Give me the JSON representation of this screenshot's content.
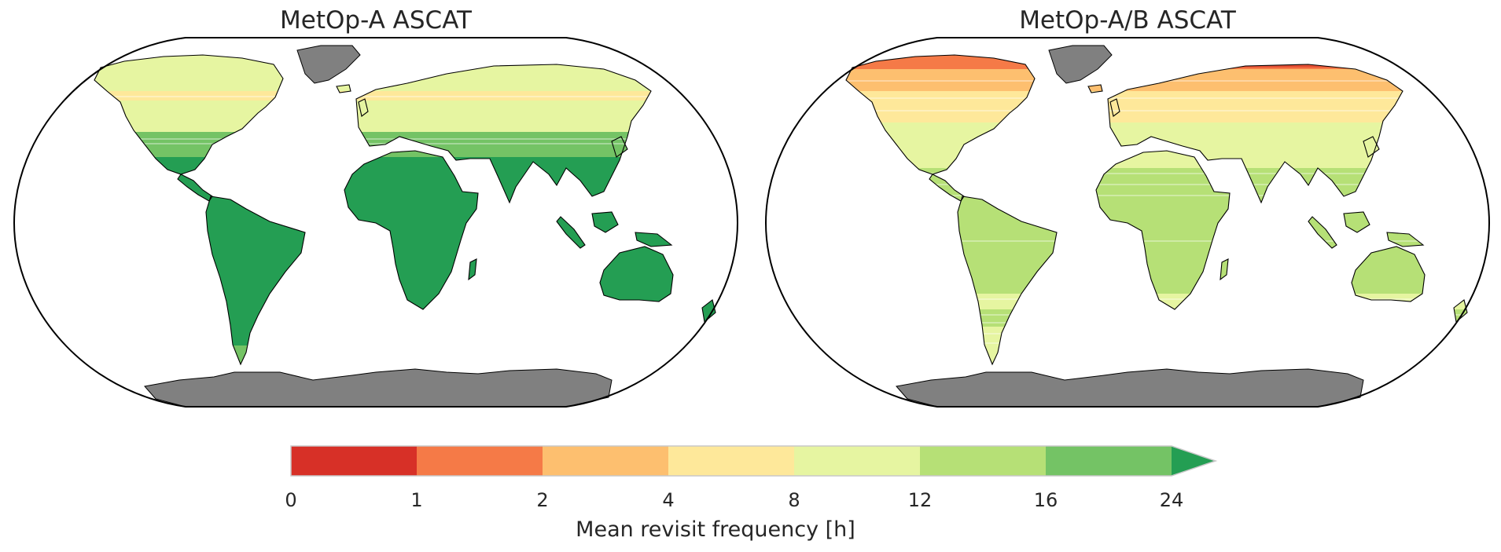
{
  "panels": [
    {
      "title": "MetOp-A ASCAT",
      "scheme": "single"
    },
    {
      "title": "MetOp-A/B ASCAT",
      "scheme": "dual"
    }
  ],
  "colorbar": {
    "label": "Mean revisit frequency [h]",
    "ticks": [
      "0",
      "1",
      "2",
      "4",
      "8",
      "12",
      "16",
      "24"
    ],
    "bins": [
      {
        "from": 0,
        "to": 1,
        "color": "#d73027"
      },
      {
        "from": 1,
        "to": 2,
        "color": "#f57a47"
      },
      {
        "from": 2,
        "to": 4,
        "color": "#fdbf6f"
      },
      {
        "from": 4,
        "to": 8,
        "color": "#fee89a"
      },
      {
        "from": 8,
        "to": 12,
        "color": "#e6f5a1"
      },
      {
        "from": 12,
        "to": 16,
        "color": "#b6e076"
      },
      {
        "from": 16,
        "to": 24,
        "color": "#74c365"
      }
    ],
    "extend_color": "#249e53",
    "extend": "max"
  },
  "colors": {
    "greenland_antarctica": "#808080",
    "coastline": "#000000",
    "ocean": "#ffffff",
    "frame": "#000000"
  }
}
